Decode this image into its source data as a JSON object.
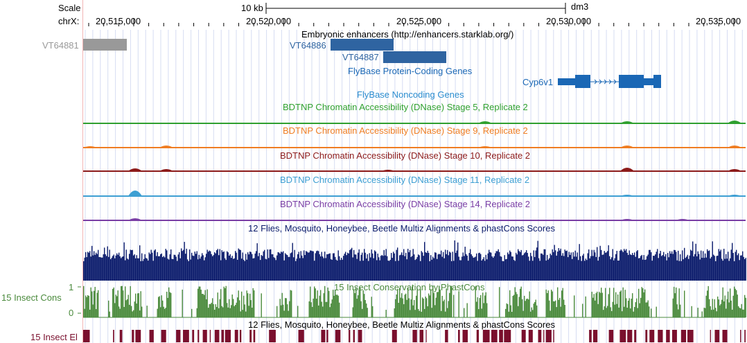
{
  "ruler": {
    "scale_label": "Scale",
    "chrom_label": "chrX:",
    "scale_bar_label": "10 kb",
    "assembly": "dm3",
    "positions": [
      "20,515,000",
      "20,520,000",
      "20,525,000",
      "20,530,000",
      "20,535,000"
    ]
  },
  "tracks": {
    "enhancers": {
      "title": "Embryonic enhancers (http://enhancers.starklab.org/)",
      "items": [
        {
          "name": "VT64881",
          "color": "#999999"
        },
        {
          "name": "VT64886",
          "color": "#2f64a1"
        },
        {
          "name": "VT64887",
          "color": "#2f64a1"
        }
      ]
    },
    "coding": {
      "title": "FlyBase Protein-Coding Genes",
      "color": "#1a67b5",
      "gene": "Cyp6v1"
    },
    "noncoding": {
      "title": "FlyBase Noncoding Genes",
      "color": "#2a8ccf"
    },
    "dnase": [
      {
        "title": "BDTNP Chromatin Accessibility (DNase) Stage 5, Replicate 2",
        "color": "#2fa02f"
      },
      {
        "title": "BDTNP Chromatin Accessibility (DNase) Stage 9, Replicate 2",
        "color": "#ef7d22"
      },
      {
        "title": "BDTNP Chromatin Accessibility (DNase) Stage 10, Replicate 2",
        "color": "#8c1a1a"
      },
      {
        "title": "BDTNP Chromatin Accessibility (DNase) Stage 11, Replicate 2",
        "color": "#3d9fd3"
      },
      {
        "title": "BDTNP Chromatin Accessibility (DNase) Stage 14, Replicate 2",
        "color": "#7a3ea5"
      }
    ],
    "multiz": {
      "title": "12 Flies, Mosquito, Honeybee, Beetle Multiz Alignments & phastCons Scores",
      "color": "#0b1b6b"
    },
    "insect_cons": {
      "title": "15 Insect Conservation by PhastCons",
      "side_label": "15 Insect Cons",
      "ymax": "1",
      "ymin": "0",
      "color": "#4a8a3c"
    },
    "insect_el": {
      "title": "12 Flies, Mosquito, Honeybee, Beetle Multiz Alignments & phastCons Scores",
      "side_label": "15 Insect El",
      "color": "#7a0f2d"
    }
  }
}
